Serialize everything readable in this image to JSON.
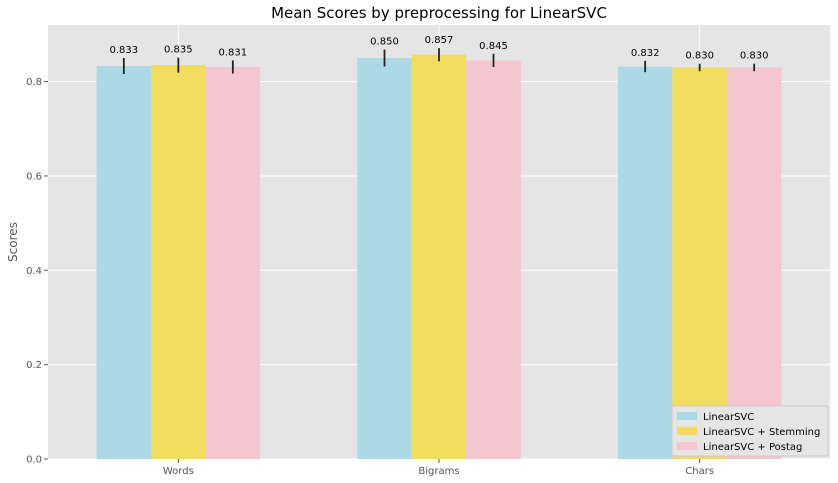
{
  "chart_data": {
    "type": "bar",
    "title": "Mean Scores by preprocessing for LinearSVC",
    "xlabel": "",
    "ylabel": "Scores",
    "categories": [
      "Words",
      "Bigrams",
      "Chars"
    ],
    "ylim": [
      0,
      0.92
    ],
    "yticks": [
      0.0,
      0.2,
      0.4,
      0.6,
      0.8
    ],
    "ytick_labels": [
      "0.0",
      "0.2",
      "0.4",
      "0.6",
      "0.8"
    ],
    "grid": true,
    "legend_position": "bottom-right",
    "series": [
      {
        "name": "LinearSVC",
        "color": "#add8e6",
        "values": [
          0.833,
          0.85,
          0.832
        ],
        "errors": [
          0.017,
          0.018,
          0.012
        ],
        "labels": [
          "0.833",
          "0.850",
          "0.832"
        ]
      },
      {
        "name": "LinearSVC + Stemming",
        "color": "#f2dc5d",
        "values": [
          0.835,
          0.857,
          0.83
        ],
        "errors": [
          0.016,
          0.014,
          0.008
        ],
        "labels": [
          "0.835",
          "0.857",
          "0.830"
        ]
      },
      {
        "name": "LinearSVC + Postag",
        "color": "#f4c6cf",
        "values": [
          0.831,
          0.845,
          0.83
        ],
        "errors": [
          0.014,
          0.014,
          0.008
        ],
        "labels": [
          "0.831",
          "0.845",
          "0.830"
        ]
      }
    ]
  }
}
